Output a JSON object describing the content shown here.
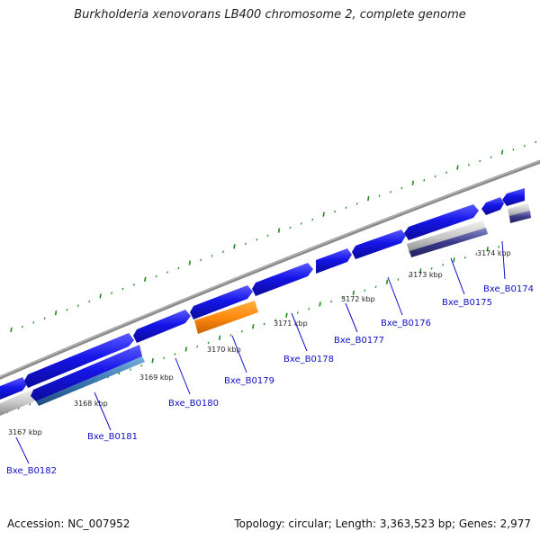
{
  "title": "Burkholderia xenovorans LB400 chromosome 2, complete genome",
  "footer": {
    "accession": "Accession: NC_007952",
    "topology": "Topology: circular; Length: 3,363,523 bp; Genes: 2,977"
  },
  "kbp_ticks": [
    "3167 kbp",
    "3168 kbp",
    "3169 kbp",
    "3170 kbp",
    "3171 kbp",
    "3172 kbp",
    "3173 kbp",
    "3174 kbp"
  ],
  "gene_labels": [
    "Bxe_B0182",
    "Bxe_B0181",
    "Bxe_B0180",
    "Bxe_B0179",
    "Bxe_B0178",
    "Bxe_B0177",
    "Bxe_B0176",
    "Bxe_B0175",
    "Bxe_B0174"
  ],
  "colors": {
    "backbone": "#808080",
    "forward_gene": "#1515e8",
    "reverse_gene": "#1515e8",
    "highlight_gene": "#ff8c10",
    "teal_gene": "#3a78b0",
    "gray_gene": "#b8b8b8",
    "purple_gene": "#3a3a8a",
    "tick_green": "#1e8a1e",
    "label_line": "#1010c8"
  }
}
